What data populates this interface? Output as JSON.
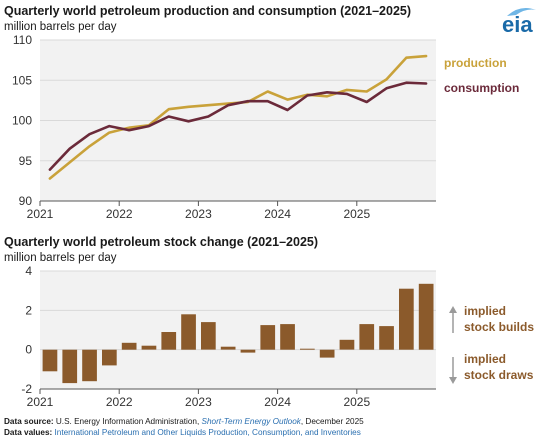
{
  "logo": {
    "text": "eia",
    "color": "#1a6aa8"
  },
  "colors": {
    "production": "#c9a23a",
    "consumption": "#6b2a3a",
    "stock": "#8b5a2b",
    "grid": "#d9d9d9",
    "panel": "#f2f2f2"
  },
  "chart_data": [
    {
      "type": "line",
      "title": "Quarterly world petroleum production and consumption (2021–2025)",
      "ylabel": "million barrels per day",
      "ylim": [
        90,
        110
      ],
      "yticks": [
        90,
        95,
        100,
        105,
        110
      ],
      "xticks": [
        "2021",
        "2022",
        "2023",
        "2024",
        "2025"
      ],
      "grid": true,
      "series": [
        {
          "name": "production",
          "x": [
            "2021Q1",
            "2021Q2",
            "2021Q3",
            "2021Q4",
            "2022Q1",
            "2022Q2",
            "2022Q3",
            "2022Q4",
            "2023Q1",
            "2023Q2",
            "2023Q3",
            "2023Q4",
            "2024Q1",
            "2024Q2",
            "2024Q3",
            "2024Q4",
            "2025Q1",
            "2025Q2",
            "2025Q3",
            "2025Q4"
          ],
          "values": [
            92.8,
            94.8,
            96.8,
            98.5,
            99.1,
            99.4,
            101.4,
            101.7,
            101.9,
            102.1,
            102.3,
            103.6,
            102.6,
            103.2,
            103.0,
            103.8,
            103.6,
            105.1,
            107.8,
            108.0
          ]
        },
        {
          "name": "consumption",
          "x": [
            "2021Q1",
            "2021Q2",
            "2021Q3",
            "2021Q4",
            "2022Q1",
            "2022Q2",
            "2022Q3",
            "2022Q4",
            "2023Q1",
            "2023Q2",
            "2023Q3",
            "2023Q4",
            "2024Q1",
            "2024Q2",
            "2024Q3",
            "2024Q4",
            "2025Q1",
            "2025Q2",
            "2025Q3",
            "2025Q4"
          ],
          "values": [
            93.9,
            96.5,
            98.3,
            99.3,
            98.8,
            99.3,
            100.5,
            99.9,
            100.5,
            101.9,
            102.4,
            102.4,
            101.3,
            103.1,
            103.5,
            103.3,
            102.3,
            104.0,
            104.7,
            104.6
          ]
        }
      ]
    },
    {
      "type": "bar",
      "title": "Quarterly world petroleum stock change (2021–2025)",
      "ylabel": "million barrels per day",
      "ylim": [
        -2,
        4
      ],
      "yticks": [
        -2,
        0,
        2,
        4
      ],
      "xticks": [
        "2021",
        "2022",
        "2023",
        "2024",
        "2025"
      ],
      "grid": true,
      "categories": [
        "2021Q1",
        "2021Q2",
        "2021Q3",
        "2021Q4",
        "2022Q1",
        "2022Q2",
        "2022Q3",
        "2022Q4",
        "2023Q1",
        "2023Q2",
        "2023Q3",
        "2023Q4",
        "2024Q1",
        "2024Q2",
        "2024Q3",
        "2024Q4",
        "2025Q1",
        "2025Q2",
        "2025Q3",
        "2025Q4"
      ],
      "values": [
        -1.1,
        -1.7,
        -1.6,
        -0.8,
        0.35,
        0.2,
        0.9,
        1.8,
        1.4,
        0.15,
        -0.15,
        1.25,
        1.3,
        0.05,
        -0.4,
        0.5,
        1.3,
        1.2,
        3.1,
        3.35
      ],
      "annotations": [
        {
          "text": "implied stock builds",
          "lines": [
            "implied",
            "stock builds"
          ],
          "direction": "up"
        },
        {
          "text": "implied stock draws",
          "lines": [
            "implied",
            "stock draws"
          ],
          "direction": "down"
        }
      ]
    }
  ],
  "footer": {
    "source_label": "Data source:",
    "source_text_1": " U.S. Energy Information Administration, ",
    "source_italic": "Short-Term Energy Outlook",
    "source_text_2": ", December 2025",
    "values_label": "Data values:",
    "values_text": " International Petroleum and Other Liquids Production, Consumption, and Inventories"
  }
}
